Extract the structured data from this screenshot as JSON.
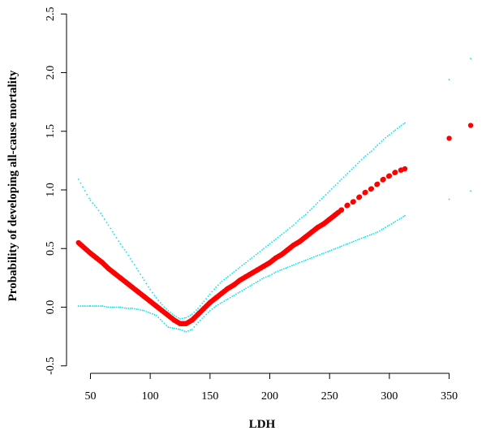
{
  "chart_data": {
    "type": "scatter",
    "title": "",
    "xlabel": "LDH",
    "ylabel": "Probability of developing all-cause mortality",
    "xlim": [
      30,
      372
    ],
    "ylim": [
      -0.55,
      2.55
    ],
    "x_ticks": [
      50,
      100,
      150,
      200,
      250,
      300,
      350
    ],
    "y_ticks": [
      -0.5,
      0.0,
      0.5,
      1.0,
      1.5,
      2.0,
      2.5
    ],
    "y_tick_labels": [
      "-0.5",
      "0.0",
      "0.5",
      "1.0",
      "1.5",
      "2.0",
      "2.5"
    ],
    "grid": false,
    "legend": "none",
    "colors": {
      "estimate": "#ff0000",
      "ci": "#00e5ee",
      "axis": "#000000"
    },
    "series": [
      {
        "role": "estimate",
        "x": [
          40,
          50,
          55,
          60,
          65,
          70,
          75,
          80,
          85,
          90,
          95,
          100,
          105,
          110,
          115,
          120,
          125,
          130,
          135,
          140,
          145,
          150,
          155,
          160,
          165,
          170,
          175,
          180,
          185,
          190,
          195,
          200,
          205,
          210,
          215,
          220,
          225,
          230,
          235,
          240,
          245,
          250,
          255,
          260,
          265,
          270,
          275,
          280,
          285,
          290,
          295,
          300,
          305,
          310,
          313,
          350,
          368
        ],
        "y": [
          0.55,
          0.46,
          0.42,
          0.38,
          0.33,
          0.29,
          0.25,
          0.21,
          0.17,
          0.13,
          0.09,
          0.05,
          0.01,
          -0.03,
          -0.07,
          -0.11,
          -0.14,
          -0.14,
          -0.11,
          -0.06,
          -0.01,
          0.04,
          0.08,
          0.12,
          0.16,
          0.19,
          0.23,
          0.26,
          0.29,
          0.32,
          0.35,
          0.38,
          0.42,
          0.45,
          0.49,
          0.53,
          0.56,
          0.6,
          0.64,
          0.68,
          0.71,
          0.75,
          0.79,
          0.83,
          0.87,
          0.9,
          0.94,
          0.98,
          1.01,
          1.05,
          1.09,
          1.12,
          1.15,
          1.17,
          1.18,
          1.44,
          1.55
        ]
      },
      {
        "role": "ci-upper",
        "x": [
          40,
          50,
          55,
          60,
          65,
          70,
          75,
          80,
          85,
          90,
          95,
          100,
          105,
          110,
          115,
          120,
          125,
          130,
          135,
          140,
          145,
          150,
          155,
          160,
          165,
          170,
          175,
          180,
          185,
          190,
          195,
          200,
          205,
          210,
          215,
          220,
          225,
          230,
          235,
          240,
          245,
          250,
          255,
          260,
          265,
          270,
          275,
          280,
          285,
          290,
          295,
          300,
          305,
          310,
          313,
          350,
          368
        ],
        "y": [
          1.09,
          0.91,
          0.85,
          0.78,
          0.7,
          0.62,
          0.54,
          0.47,
          0.39,
          0.31,
          0.23,
          0.15,
          0.08,
          0.02,
          -0.03,
          -0.07,
          -0.1,
          -0.09,
          -0.06,
          -0.01,
          0.05,
          0.11,
          0.17,
          0.22,
          0.26,
          0.3,
          0.34,
          0.38,
          0.42,
          0.46,
          0.5,
          0.54,
          0.58,
          0.62,
          0.66,
          0.7,
          0.75,
          0.79,
          0.84,
          0.89,
          0.94,
          0.99,
          1.04,
          1.09,
          1.14,
          1.19,
          1.24,
          1.29,
          1.33,
          1.38,
          1.43,
          1.47,
          1.51,
          1.55,
          1.57,
          1.94,
          2.12
        ]
      },
      {
        "role": "ci-lower",
        "x": [
          40,
          50,
          55,
          60,
          65,
          70,
          75,
          80,
          85,
          90,
          95,
          100,
          105,
          110,
          115,
          120,
          125,
          130,
          135,
          140,
          145,
          150,
          155,
          160,
          165,
          170,
          175,
          180,
          185,
          190,
          195,
          200,
          205,
          210,
          215,
          220,
          225,
          230,
          235,
          240,
          245,
          250,
          255,
          260,
          265,
          270,
          275,
          280,
          285,
          290,
          295,
          300,
          305,
          310,
          313,
          350,
          368
        ],
        "y": [
          0.01,
          0.01,
          0.01,
          0.01,
          0.0,
          0.0,
          0.0,
          -0.01,
          -0.01,
          -0.02,
          -0.03,
          -0.05,
          -0.07,
          -0.12,
          -0.17,
          -0.18,
          -0.19,
          -0.21,
          -0.19,
          -0.13,
          -0.08,
          -0.03,
          0.01,
          0.04,
          0.07,
          0.1,
          0.13,
          0.16,
          0.19,
          0.22,
          0.25,
          0.27,
          0.3,
          0.32,
          0.34,
          0.36,
          0.38,
          0.4,
          0.42,
          0.44,
          0.46,
          0.48,
          0.5,
          0.52,
          0.54,
          0.56,
          0.58,
          0.6,
          0.62,
          0.64,
          0.67,
          0.7,
          0.73,
          0.76,
          0.78,
          0.92,
          0.99
        ]
      }
    ]
  }
}
